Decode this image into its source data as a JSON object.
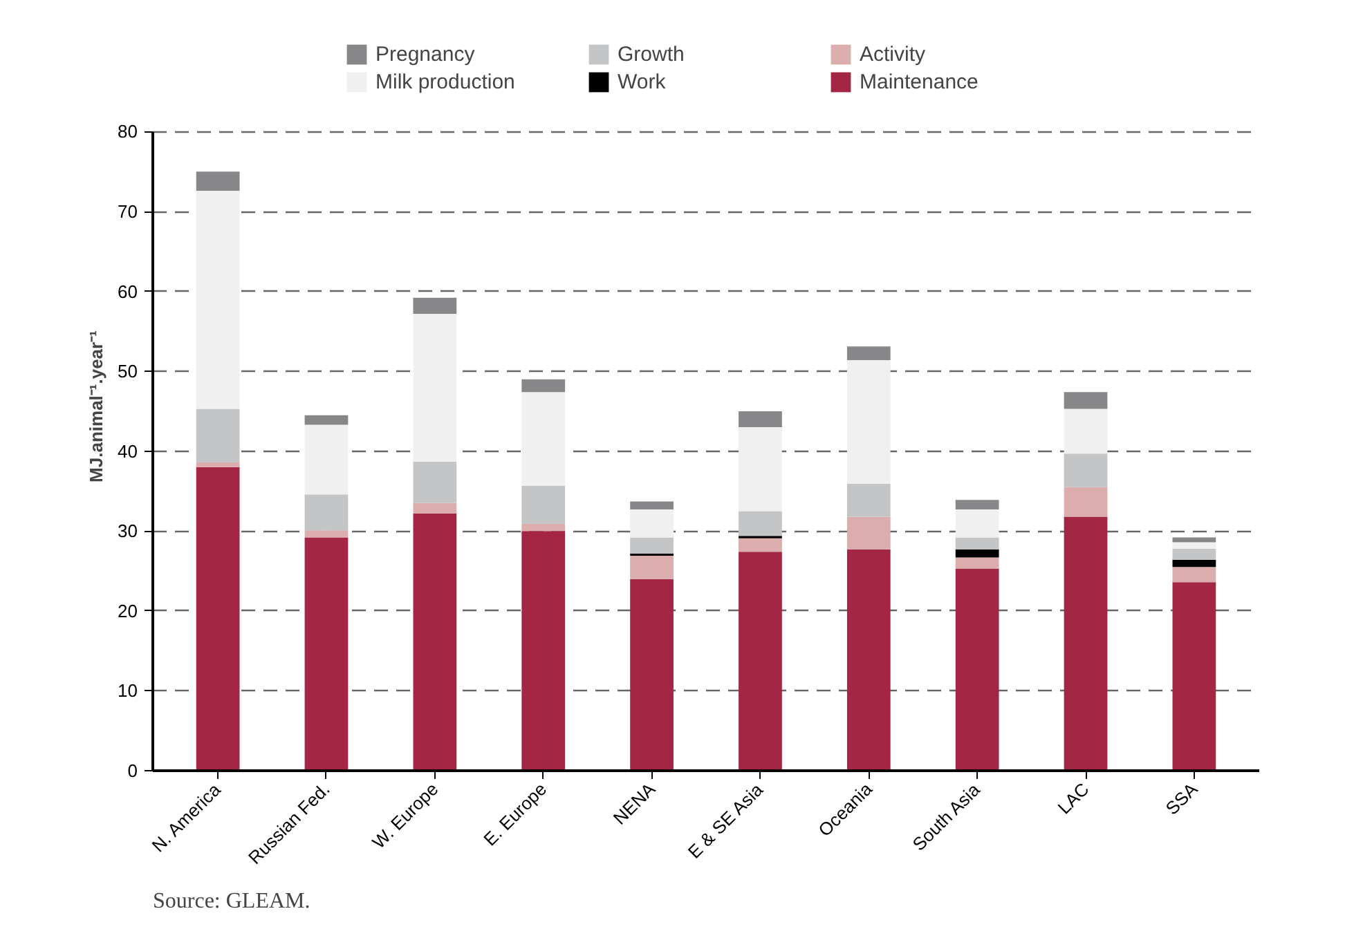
{
  "chart_data": {
    "type": "bar",
    "stacked": true,
    "ylabel": "MJ.animal⁻¹.year⁻¹",
    "categories": [
      "N. America",
      "Russian Fed.",
      "W. Europe",
      "E. Europe",
      "NENA",
      "E & SE Asia",
      "Oceania",
      "South Asia",
      "LAC",
      "SSA"
    ],
    "series": [
      {
        "name": "Maintenance",
        "color": "#a32744",
        "values": [
          38,
          29.2,
          32.2,
          30,
          24,
          27.4,
          27.7,
          25.3,
          31.8,
          23.6
        ]
      },
      {
        "name": "Activity",
        "color": "#dbadad",
        "values": [
          0.6,
          0.9,
          1.3,
          0.9,
          2.9,
          1.7,
          4.1,
          1.4,
          3.7,
          1.9
        ]
      },
      {
        "name": "Work",
        "color": "#000000",
        "values": [
          0,
          0,
          0,
          0,
          0.3,
          0.3,
          0,
          1,
          0,
          0.9
        ]
      },
      {
        "name": "Growth",
        "color": "#c4c5c7",
        "values": [
          6.7,
          4.5,
          5.2,
          4.8,
          2,
          3.1,
          4.1,
          1.5,
          4.2,
          1.4
        ]
      },
      {
        "name": "Milk production",
        "color": "#f0f0f0",
        "values": [
          27.3,
          8.7,
          18.5,
          11.7,
          3.5,
          10.5,
          15.5,
          3.5,
          5.6,
          0.8
        ]
      },
      {
        "name": "Pregnancy",
        "color": "#87878a",
        "values": [
          2.4,
          1.2,
          2,
          1.6,
          1,
          2,
          1.7,
          1.2,
          2.1,
          0.6
        ]
      }
    ],
    "ylim": [
      0,
      80
    ],
    "yticks": [
      0,
      10,
      20,
      30,
      40,
      50,
      60,
      70,
      80
    ],
    "grid": "y",
    "legend": "top",
    "annotations": [
      "Source: GLEAM."
    ]
  }
}
